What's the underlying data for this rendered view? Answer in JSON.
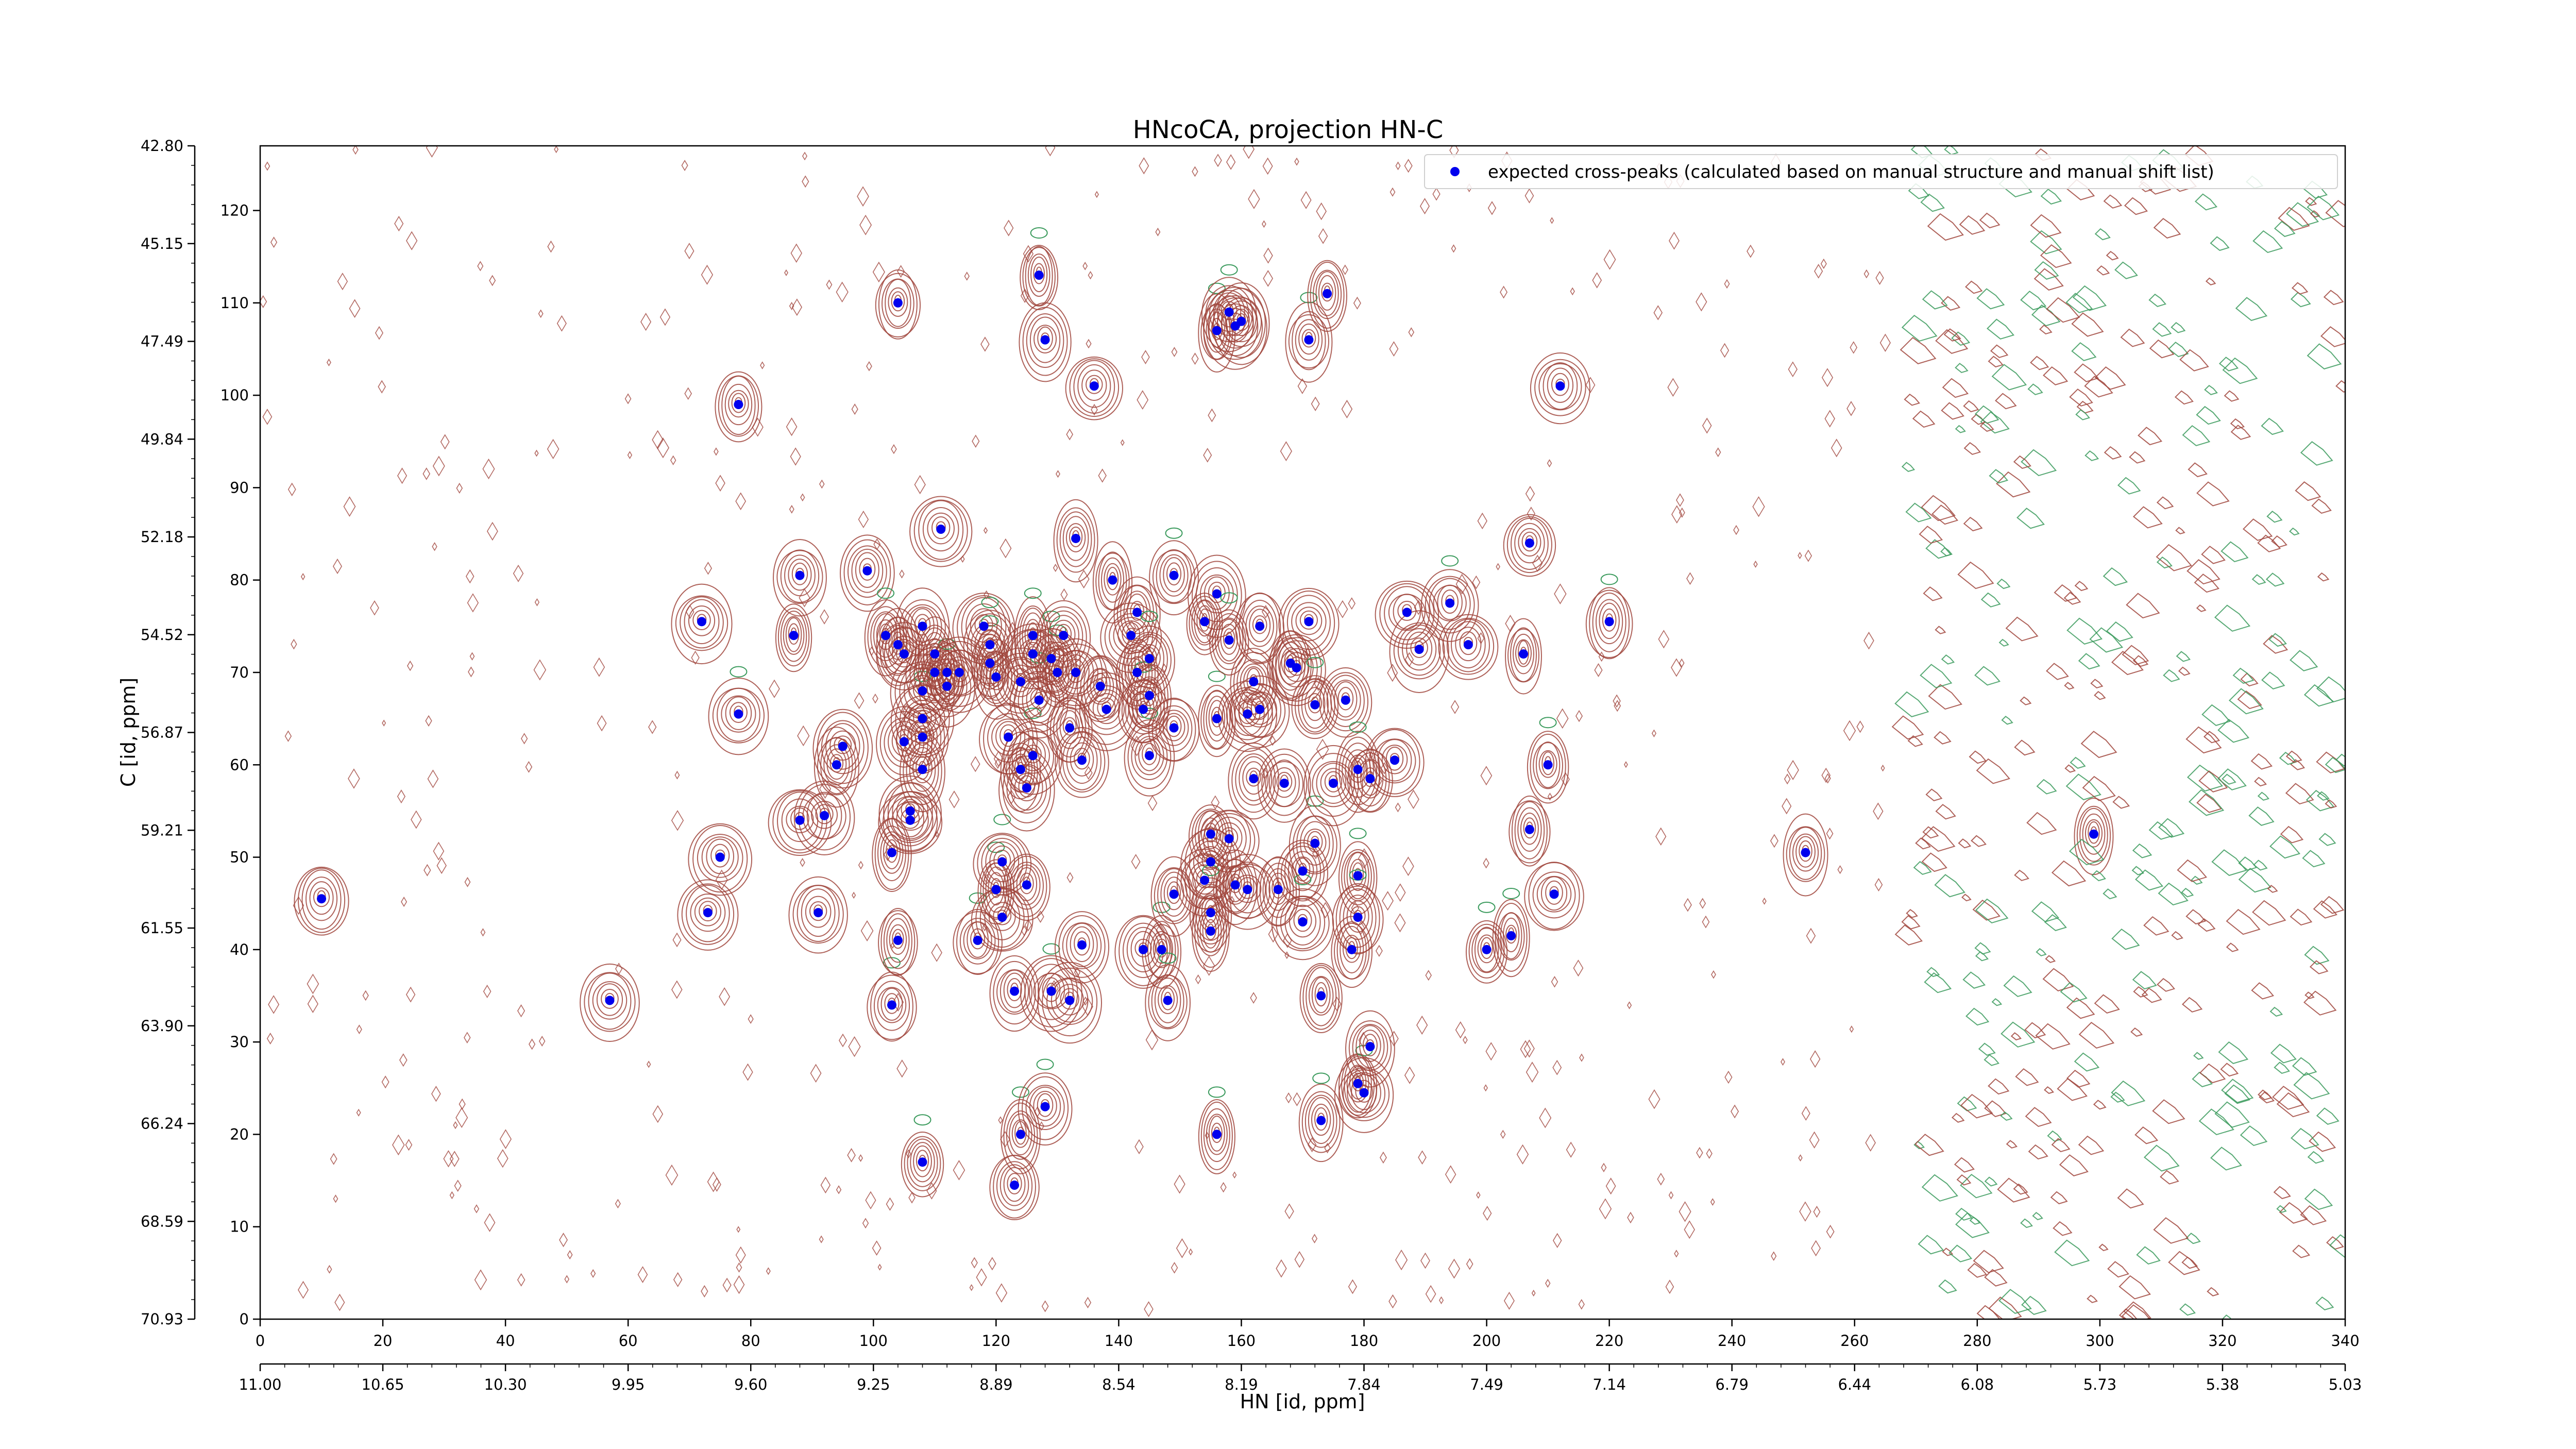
{
  "chart_data": {
    "type": "scatter",
    "title": "HNcoCA, projection HN-C",
    "xlabel": "HN [id, ppm]",
    "ylabel": "C [id, ppm]",
    "x_index_axis": {
      "lim": [
        0,
        340
      ],
      "ticks": [
        0,
        20,
        40,
        60,
        80,
        100,
        120,
        140,
        160,
        180,
        200,
        220,
        240,
        260,
        280,
        300,
        320,
        340
      ],
      "tick_labels": [
        "0",
        "20",
        "40",
        "60",
        "80",
        "100",
        "120",
        "140",
        "160",
        "180",
        "200",
        "220",
        "240",
        "260",
        "280",
        "300",
        "320",
        "340"
      ]
    },
    "x_ppm_axis": {
      "tick_labels": [
        "11.00",
        "10.65",
        "10.30",
        "9.95",
        "9.60",
        "9.25",
        "8.89",
        "8.54",
        "8.19",
        "7.84",
        "7.49",
        "7.14",
        "6.79",
        "6.44",
        "6.08",
        "5.73",
        "5.38",
        "5.03"
      ]
    },
    "y_index_axis": {
      "lim": [
        0,
        127
      ],
      "ticks": [
        0,
        10,
        20,
        30,
        40,
        50,
        60,
        70,
        80,
        90,
        100,
        110,
        120
      ],
      "tick_labels": [
        "0",
        "10",
        "20",
        "30",
        "40",
        "50",
        "60",
        "70",
        "80",
        "90",
        "100",
        "110",
        "120"
      ]
    },
    "y_ppm_axis": {
      "tick_labels": [
        "70.93",
        "68.59",
        "66.24",
        "63.90",
        "61.55",
        "59.21",
        "56.87",
        "54.52",
        "52.18",
        "49.84",
        "47.49",
        "45.15",
        "42.80"
      ]
    },
    "legend": {
      "position": "top-right",
      "label": "expected cross-peaks (calculated based on manual structure and manual shift list)"
    },
    "grid": false,
    "colors": {
      "peak_marker": "#0000ee",
      "contour_positive": "#a0453c",
      "contour_negative": "#3a9a5c"
    },
    "series": [
      {
        "name": "expected cross-peaks (calculated based on manual structure and manual shift list)",
        "points": [
          [
            10,
            45.5
          ],
          [
            57,
            34.5
          ],
          [
            72,
            75.5
          ],
          [
            73,
            44
          ],
          [
            75,
            50
          ],
          [
            78,
            65.5
          ],
          [
            78,
            99
          ],
          [
            87,
            74
          ],
          [
            88,
            80.5
          ],
          [
            88,
            54
          ],
          [
            91,
            44
          ],
          [
            92,
            54.5
          ],
          [
            94,
            60
          ],
          [
            95,
            62
          ],
          [
            99,
            81
          ],
          [
            102,
            74
          ],
          [
            103,
            50.5
          ],
          [
            103,
            34
          ],
          [
            104,
            41
          ],
          [
            104,
            110
          ],
          [
            104,
            73
          ],
          [
            105,
            72
          ],
          [
            105,
            62.5
          ],
          [
            106,
            55
          ],
          [
            106,
            54
          ],
          [
            108,
            68
          ],
          [
            108,
            63
          ],
          [
            108,
            65
          ],
          [
            108,
            59.5
          ],
          [
            108,
            17
          ],
          [
            108,
            75
          ],
          [
            110,
            72
          ],
          [
            110,
            70
          ],
          [
            111,
            85.5
          ],
          [
            112,
            68.5
          ],
          [
            112,
            70
          ],
          [
            114,
            70
          ],
          [
            117,
            41
          ],
          [
            118,
            75
          ],
          [
            119,
            71
          ],
          [
            119,
            73
          ],
          [
            120,
            69.5
          ],
          [
            120,
            46.5
          ],
          [
            121,
            49.5
          ],
          [
            121,
            43.5
          ],
          [
            122,
            63
          ],
          [
            123,
            35.5
          ],
          [
            123,
            14.5
          ],
          [
            124,
            69
          ],
          [
            124,
            20
          ],
          [
            124,
            59.5
          ],
          [
            125,
            47
          ],
          [
            125,
            57.5
          ],
          [
            126,
            74
          ],
          [
            126,
            72
          ],
          [
            126,
            61
          ],
          [
            127,
            113
          ],
          [
            127,
            67
          ],
          [
            128,
            23
          ],
          [
            128,
            106
          ],
          [
            129,
            71.5
          ],
          [
            129,
            35.5
          ],
          [
            130,
            70
          ],
          [
            131,
            74
          ],
          [
            132,
            64
          ],
          [
            132,
            34.5
          ],
          [
            133,
            70
          ],
          [
            133,
            84.5
          ],
          [
            134,
            60.5
          ],
          [
            134,
            40.5
          ],
          [
            136,
            101
          ],
          [
            137,
            68.5
          ],
          [
            138,
            66
          ],
          [
            139,
            80
          ],
          [
            142,
            74
          ],
          [
            143,
            76.5
          ],
          [
            143,
            70
          ],
          [
            144,
            40
          ],
          [
            144,
            66
          ],
          [
            145,
            71.5
          ],
          [
            145,
            61
          ],
          [
            145,
            67.5
          ],
          [
            147,
            40
          ],
          [
            148,
            34.5
          ],
          [
            149,
            80.5
          ],
          [
            149,
            46
          ],
          [
            149,
            64
          ],
          [
            154,
            75.5
          ],
          [
            154,
            47.5
          ],
          [
            155,
            52.5
          ],
          [
            155,
            49.5
          ],
          [
            155,
            42
          ],
          [
            155,
            44
          ],
          [
            156,
            65
          ],
          [
            156,
            78.5
          ],
          [
            156,
            20
          ],
          [
            156,
            107
          ],
          [
            158,
            73.5
          ],
          [
            158,
            109
          ],
          [
            158,
            52
          ],
          [
            159,
            107.5
          ],
          [
            159,
            47
          ],
          [
            160,
            108
          ],
          [
            161,
            65.5
          ],
          [
            161,
            46.5
          ],
          [
            162,
            69
          ],
          [
            162,
            58.5
          ],
          [
            163,
            75
          ],
          [
            163,
            66
          ],
          [
            166,
            46.5
          ],
          [
            167,
            58
          ],
          [
            168,
            71
          ],
          [
            169,
            70.5
          ],
          [
            170,
            48.5
          ],
          [
            170,
            43
          ],
          [
            171,
            75.5
          ],
          [
            171,
            106
          ],
          [
            172,
            66.5
          ],
          [
            172,
            51.5
          ],
          [
            173,
            35
          ],
          [
            173,
            21.5
          ],
          [
            174,
            111
          ],
          [
            175,
            58
          ],
          [
            177,
            67
          ],
          [
            178,
            40
          ],
          [
            179,
            59.5
          ],
          [
            179,
            48
          ],
          [
            179,
            43.5
          ],
          [
            179,
            25.5
          ],
          [
            180,
            24.5
          ],
          [
            181,
            58.5
          ],
          [
            181,
            29.5
          ],
          [
            185,
            60.5
          ],
          [
            187,
            76.5
          ],
          [
            189,
            72.5
          ],
          [
            194,
            77.5
          ],
          [
            197,
            73
          ],
          [
            200,
            40
          ],
          [
            204,
            41.5
          ],
          [
            206,
            72
          ],
          [
            207,
            53
          ],
          [
            207,
            84
          ],
          [
            210,
            60
          ],
          [
            211,
            46
          ],
          [
            212,
            101
          ],
          [
            220,
            75.5
          ],
          [
            252,
            50.5
          ],
          [
            299,
            52.5
          ]
        ]
      }
    ]
  }
}
